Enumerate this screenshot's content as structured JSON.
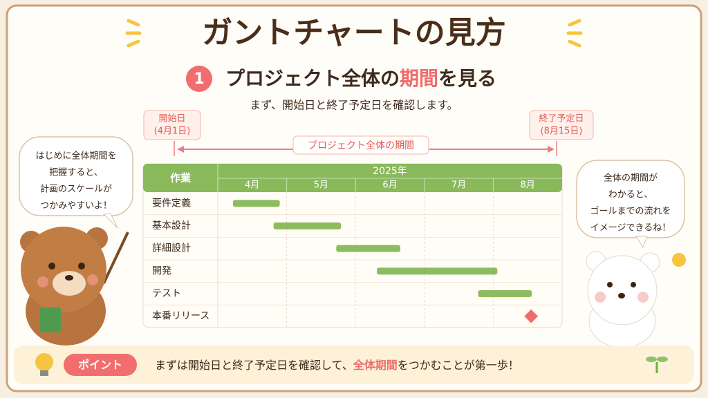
{
  "header": {
    "title": "ガントチャートの見方"
  },
  "section": {
    "number": "1",
    "title_parts": [
      "プロジェクト全体の",
      "期間",
      "を見る"
    ],
    "subtitle": "まず、開始日と終了予定日を確認します。"
  },
  "start_label": {
    "title": "開始日",
    "date": "(4月1日)"
  },
  "end_label": {
    "title": "終了予定日",
    "date": "(8月15日)"
  },
  "span_label": "プロジェクト全体の期間",
  "chart_data": {
    "type": "gantt",
    "task_header": "作業",
    "year": "2025年",
    "categories": [
      "4月",
      "5月",
      "6月",
      "7月",
      "8月"
    ],
    "xlim": [
      4,
      9
    ],
    "xticks": [
      5,
      6,
      7,
      8
    ],
    "tasks": [
      "要件定義",
      "基本設計",
      "詳細設計",
      "開発",
      "テスト",
      "本番リリース"
    ],
    "starts": [
      4.22,
      4.81,
      5.72,
      6.31,
      7.78,
      8.55
    ],
    "ends": [
      4.9,
      5.79,
      6.65,
      8.06,
      8.56,
      null
    ],
    "color": "#8dbb5f",
    "milestone_color": "#f06b6b",
    "grid": true
  },
  "left_bubble": {
    "lines": [
      "はじめに全体期間を",
      "把握すると、",
      "計画のスケールが",
      "つかみやすいよ！"
    ]
  },
  "right_bubble": {
    "lines": [
      "全体の期間が",
      "わかると、",
      "ゴールまでの流れを",
      "イメージできるね！"
    ]
  },
  "point": {
    "badge": "ポイント",
    "text_parts": [
      "まずは開始日と終了予定日を確認して、",
      "全体期間",
      "をつかむことが第一歩！"
    ]
  }
}
